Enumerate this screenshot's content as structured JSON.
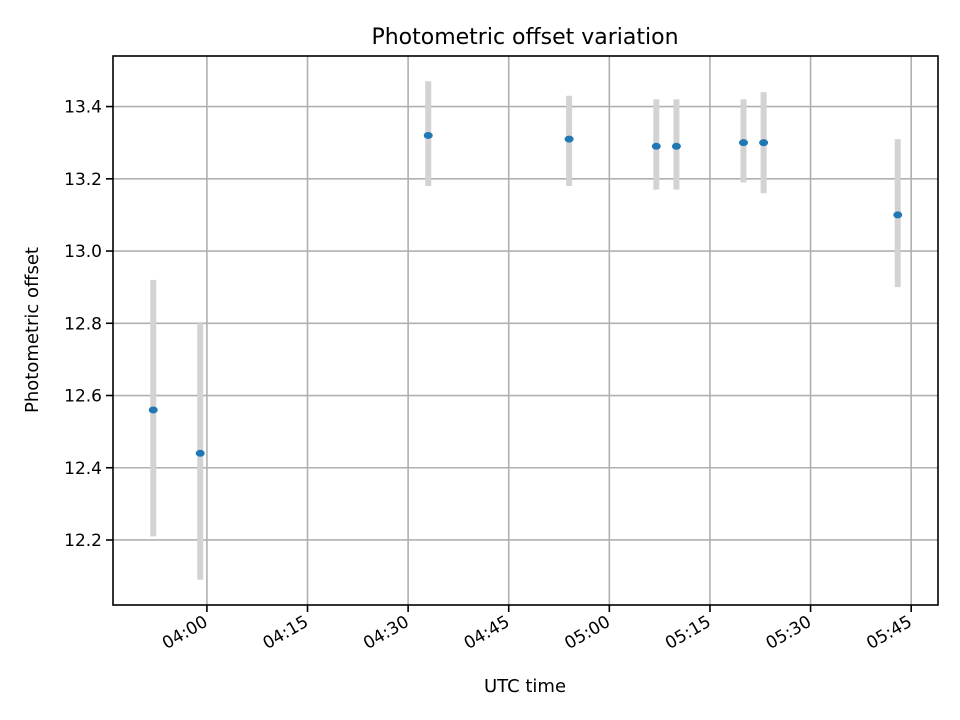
{
  "chart_data": {
    "type": "scatter",
    "title": "Photometric offset variation",
    "xlabel": "UTC time",
    "ylabel": "Photometric offset",
    "x_tick_labels": [
      "04:00",
      "04:15",
      "04:30",
      "04:45",
      "05:00",
      "05:15",
      "05:30",
      "05:45"
    ],
    "y_ticks": [
      12.2,
      12.4,
      12.6,
      12.8,
      13.0,
      13.2,
      13.4
    ],
    "y_tick_labels": [
      "12.2",
      "12.4",
      "12.6",
      "12.8",
      "13.0",
      "13.2",
      "13.4"
    ],
    "xlim": [
      "03:46",
      "05:49"
    ],
    "ylim": [
      12.02,
      13.54
    ],
    "grid": true,
    "marker_color": "#1f77b4",
    "errorbar_color": "#d3d3d3",
    "points": [
      {
        "x": "03:52",
        "y": 12.56,
        "ymin": 12.21,
        "ymax": 12.92
      },
      {
        "x": "03:59",
        "y": 12.44,
        "ymin": 12.09,
        "ymax": 12.8
      },
      {
        "x": "04:33",
        "y": 13.32,
        "ymin": 13.18,
        "ymax": 13.47
      },
      {
        "x": "04:54",
        "y": 13.31,
        "ymin": 13.18,
        "ymax": 13.43
      },
      {
        "x": "05:07",
        "y": 13.29,
        "ymin": 13.17,
        "ymax": 13.42
      },
      {
        "x": "05:10",
        "y": 13.29,
        "ymin": 13.17,
        "ymax": 13.42
      },
      {
        "x": "05:20",
        "y": 13.3,
        "ymin": 13.19,
        "ymax": 13.42
      },
      {
        "x": "05:23",
        "y": 13.3,
        "ymin": 13.16,
        "ymax": 13.44
      },
      {
        "x": "05:43",
        "y": 13.1,
        "ymin": 12.9,
        "ymax": 13.31
      }
    ]
  }
}
